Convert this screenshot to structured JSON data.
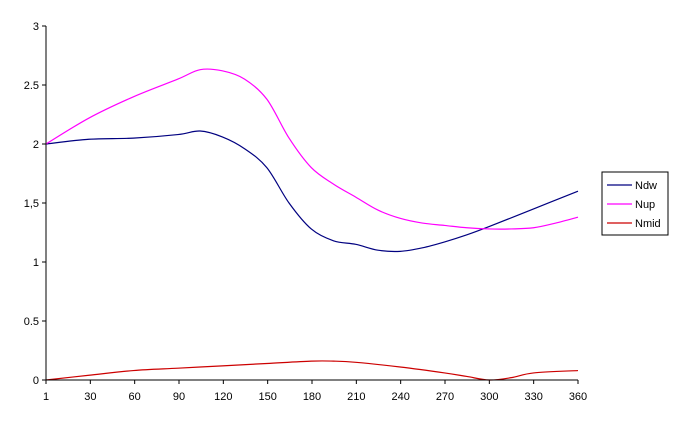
{
  "chart_data": {
    "type": "line",
    "x": [
      1,
      30,
      60,
      90,
      105,
      120,
      150,
      180,
      210,
      240,
      270,
      300,
      330,
      360
    ],
    "x_tick_labels": [
      "1",
      "30",
      "60",
      "90",
      "120",
      "150",
      "180",
      "210",
      "240",
      "270",
      "300",
      "330",
      "360"
    ],
    "y_tick_labels": [
      "0",
      "0.5",
      "1",
      "1,5",
      "2",
      "2.5",
      "3"
    ],
    "ylim": [
      0,
      3
    ],
    "xlim": [
      1,
      360
    ],
    "grid": false,
    "legend_position": "right",
    "series": [
      {
        "name": "Ndw",
        "color": "#000080",
        "points": [
          [
            1,
            2.0
          ],
          [
            30,
            2.04
          ],
          [
            60,
            2.05
          ],
          [
            90,
            2.08
          ],
          [
            105,
            2.11
          ],
          [
            120,
            2.06
          ],
          [
            135,
            1.96
          ],
          [
            150,
            1.8
          ],
          [
            165,
            1.5
          ],
          [
            180,
            1.28
          ],
          [
            195,
            1.18
          ],
          [
            210,
            1.15
          ],
          [
            225,
            1.1
          ],
          [
            240,
            1.09
          ],
          [
            255,
            1.12
          ],
          [
            270,
            1.17
          ],
          [
            285,
            1.23
          ],
          [
            300,
            1.3
          ],
          [
            330,
            1.45
          ],
          [
            360,
            1.6
          ]
        ]
      },
      {
        "name": "Nup",
        "color": "#ff00ff",
        "points": [
          [
            1,
            2.0
          ],
          [
            30,
            2.22
          ],
          [
            60,
            2.4
          ],
          [
            90,
            2.55
          ],
          [
            105,
            2.63
          ],
          [
            120,
            2.62
          ],
          [
            135,
            2.55
          ],
          [
            150,
            2.38
          ],
          [
            165,
            2.05
          ],
          [
            180,
            1.8
          ],
          [
            195,
            1.66
          ],
          [
            210,
            1.55
          ],
          [
            225,
            1.44
          ],
          [
            240,
            1.37
          ],
          [
            255,
            1.33
          ],
          [
            270,
            1.31
          ],
          [
            285,
            1.29
          ],
          [
            300,
            1.28
          ],
          [
            315,
            1.28
          ],
          [
            330,
            1.29
          ],
          [
            345,
            1.33
          ],
          [
            360,
            1.38
          ]
        ]
      },
      {
        "name": "Nmid",
        "color": "#cc0000",
        "points": [
          [
            1,
            0.0
          ],
          [
            30,
            0.04
          ],
          [
            60,
            0.08
          ],
          [
            90,
            0.1
          ],
          [
            120,
            0.12
          ],
          [
            150,
            0.14
          ],
          [
            180,
            0.16
          ],
          [
            195,
            0.16
          ],
          [
            210,
            0.15
          ],
          [
            240,
            0.11
          ],
          [
            270,
            0.06
          ],
          [
            285,
            0.03
          ],
          [
            300,
            0.0
          ],
          [
            315,
            0.02
          ],
          [
            330,
            0.06
          ],
          [
            360,
            0.08
          ]
        ]
      }
    ]
  }
}
